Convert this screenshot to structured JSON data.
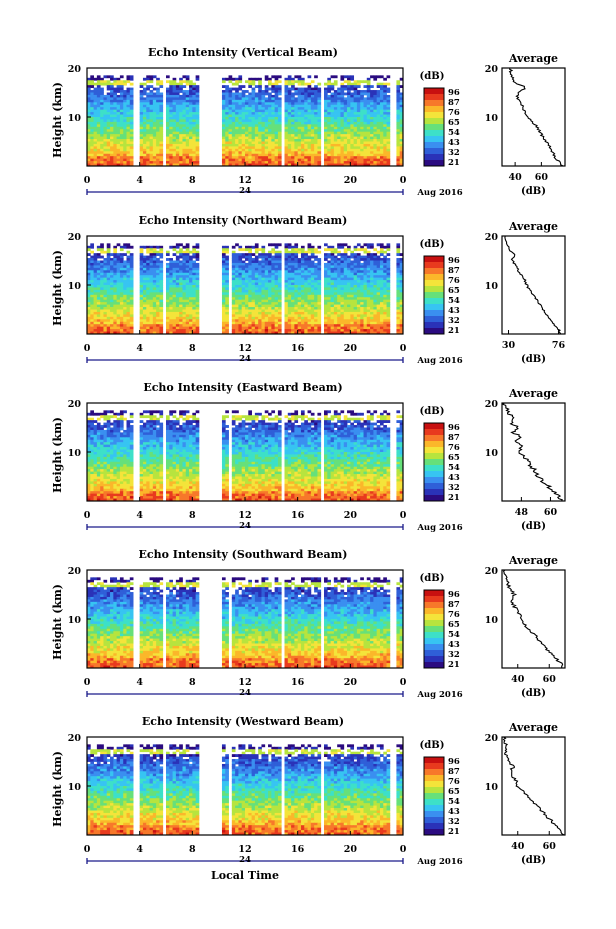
{
  "figure": {
    "xlabel": "Local Time",
    "date_label": "Aug 2016",
    "day_label": "24",
    "avg_title": "Average",
    "avg_unit": "(dB)",
    "cbar_unit": "(dB)",
    "ylabel": "Height (km)"
  },
  "colorbar": {
    "ticks": [
      "96",
      "87",
      "76",
      "65",
      "54",
      "43",
      "32",
      "21"
    ],
    "colors": [
      "#2b0b80",
      "#2a32b8",
      "#2f5fd8",
      "#3a8ff0",
      "#37c4f2",
      "#3de0c8",
      "#66e07a",
      "#b7e43e",
      "#f4e43a",
      "#fbb72a",
      "#f7782a",
      "#e83a1e",
      "#c81010"
    ]
  },
  "chart_data": [
    {
      "type": "heatmap",
      "title": "Echo Intensity (Vertical Beam)",
      "ylabel": "Height (km)",
      "xticks": [
        "0",
        "4",
        "8",
        "12",
        "16",
        "20",
        "0"
      ],
      "yticks": [
        "20",
        "10"
      ],
      "xlim": [
        0,
        24
      ],
      "ylim": [
        0,
        20
      ],
      "colorbar_ticks": [
        "96",
        "87",
        "76",
        "65",
        "54",
        "43",
        "32",
        "21"
      ],
      "data_gaps_hours": [
        [
          3.6,
          4.0
        ],
        [
          5.8,
          6.0
        ],
        [
          8.6,
          10.3
        ],
        [
          10.9,
          11.1
        ],
        [
          14.8,
          15.1
        ],
        [
          17.8,
          18.1
        ],
        [
          23.0,
          23.4
        ]
      ],
      "average_profile": {
        "xlabel": "(dB)",
        "xticks": [
          "40",
          "60"
        ],
        "xlim": [
          30,
          78
        ],
        "yticks": [
          "20",
          "10"
        ],
        "height_km": [
          0,
          1,
          2,
          3,
          4,
          5,
          6,
          7,
          8,
          9,
          10,
          11,
          12,
          13,
          14,
          15,
          16,
          17,
          18,
          19,
          20
        ],
        "values_db": [
          76,
          73,
          70,
          68,
          66,
          64,
          61,
          59,
          57,
          53,
          50,
          47,
          46,
          44,
          42,
          42,
          48,
          40,
          38,
          37,
          36
        ]
      }
    },
    {
      "type": "heatmap",
      "title": "Echo Intensity (Northward Beam)",
      "ylabel": "Height (km)",
      "xticks": [
        "0",
        "4",
        "8",
        "12",
        "16",
        "20",
        "0"
      ],
      "yticks": [
        "20",
        "10"
      ],
      "xlim": [
        0,
        24
      ],
      "ylim": [
        0,
        20
      ],
      "colorbar_ticks": [
        "96",
        "87",
        "76",
        "65",
        "54",
        "43",
        "32",
        "21"
      ],
      "data_gaps_hours": [
        [
          3.6,
          3.9
        ],
        [
          5.8,
          6.0
        ],
        [
          8.6,
          10.3
        ],
        [
          10.8,
          11.1
        ],
        [
          14.8,
          15.1
        ],
        [
          17.8,
          18.1
        ],
        [
          23.0,
          23.4
        ]
      ],
      "average_profile": {
        "xlabel": "(dB)",
        "xticks": [
          "30",
          "76"
        ],
        "xlim": [
          24,
          82
        ],
        "yticks": [
          "20",
          "10"
        ],
        "height_km": [
          0,
          1,
          2,
          3,
          4,
          5,
          6,
          7,
          8,
          9,
          10,
          11,
          12,
          13,
          14,
          15,
          16,
          17,
          18,
          19,
          20
        ],
        "values_db": [
          78,
          76,
          72,
          69,
          65,
          62,
          59,
          56,
          53,
          49,
          47,
          45,
          42,
          39,
          37,
          33,
          36,
          31,
          29,
          28,
          27
        ]
      }
    },
    {
      "type": "heatmap",
      "title": "Echo Intensity (Eastward Beam)",
      "ylabel": "Height (km)",
      "xticks": [
        "0",
        "4",
        "8",
        "12",
        "16",
        "20",
        "0"
      ],
      "yticks": [
        "20",
        "10"
      ],
      "xlim": [
        0,
        24
      ],
      "ylim": [
        0,
        20
      ],
      "colorbar_ticks": [
        "96",
        "87",
        "76",
        "65",
        "54",
        "43",
        "32",
        "21"
      ],
      "data_gaps_hours": [
        [
          3.6,
          3.9
        ],
        [
          5.8,
          6.0
        ],
        [
          8.6,
          10.3
        ],
        [
          10.8,
          11.1
        ],
        [
          14.8,
          15.1
        ],
        [
          17.8,
          18.1
        ],
        [
          23.0,
          23.4
        ]
      ],
      "average_profile": {
        "xlabel": "(dB)",
        "xticks": [
          "48",
          "60"
        ],
        "xlim": [
          40,
          66
        ],
        "yticks": [
          "20",
          "10"
        ],
        "height_km": [
          0,
          1,
          2,
          3,
          4,
          5,
          6,
          7,
          8,
          9,
          10,
          11,
          12,
          13,
          14,
          15,
          16,
          17,
          18,
          19,
          20
        ],
        "values_db": [
          65,
          63,
          61,
          59,
          57,
          55,
          54,
          52,
          51,
          49,
          47,
          48,
          46,
          47,
          45,
          46,
          44,
          44,
          43,
          42,
          41
        ]
      }
    },
    {
      "type": "heatmap",
      "title": "Echo Intensity (Southward Beam)",
      "ylabel": "Height (km)",
      "xticks": [
        "0",
        "4",
        "8",
        "12",
        "16",
        "20",
        "0"
      ],
      "yticks": [
        "20",
        "10"
      ],
      "xlim": [
        0,
        24
      ],
      "ylim": [
        0,
        20
      ],
      "colorbar_ticks": [
        "96",
        "87",
        "76",
        "65",
        "54",
        "43",
        "32",
        "21"
      ],
      "data_gaps_hours": [
        [
          3.6,
          3.9
        ],
        [
          5.8,
          6.0
        ],
        [
          8.6,
          10.3
        ],
        [
          10.8,
          11.1
        ],
        [
          14.8,
          15.1
        ],
        [
          17.8,
          18.1
        ],
        [
          23.0,
          23.4
        ]
      ],
      "average_profile": {
        "xlabel": "(dB)",
        "xticks": [
          "40",
          "60"
        ],
        "xlim": [
          30,
          70
        ],
        "yticks": [
          "20",
          "10"
        ],
        "height_km": [
          0,
          1,
          2,
          3,
          4,
          5,
          6,
          7,
          8,
          9,
          10,
          11,
          12,
          13,
          14,
          15,
          16,
          17,
          18,
          19,
          20
        ],
        "values_db": [
          69,
          67,
          64,
          61,
          58,
          55,
          53,
          50,
          47,
          44,
          42,
          41,
          39,
          37,
          36,
          38,
          35,
          34,
          33,
          32,
          32
        ]
      }
    },
    {
      "type": "heatmap",
      "title": "Echo Intensity (Westward Beam)",
      "ylabel": "Height (km)",
      "xticks": [
        "0",
        "4",
        "8",
        "12",
        "16",
        "20",
        "0"
      ],
      "yticks": [
        "20",
        "10"
      ],
      "xlim": [
        0,
        24
      ],
      "ylim": [
        0,
        20
      ],
      "colorbar_ticks": [
        "96",
        "87",
        "76",
        "65",
        "54",
        "43",
        "32",
        "21"
      ],
      "data_gaps_hours": [
        [
          3.6,
          3.9
        ],
        [
          5.8,
          6.0
        ],
        [
          8.6,
          10.3
        ],
        [
          10.8,
          11.1
        ],
        [
          14.8,
          15.1
        ],
        [
          17.8,
          18.1
        ],
        [
          23.0,
          23.4
        ]
      ],
      "average_profile": {
        "xlabel": "(dB)",
        "xticks": [
          "40",
          "60"
        ],
        "xlim": [
          30,
          70
        ],
        "yticks": [
          "20",
          "10"
        ],
        "height_km": [
          0,
          1,
          2,
          3,
          4,
          5,
          6,
          7,
          8,
          9,
          10,
          11,
          12,
          13,
          14,
          15,
          16,
          17,
          18,
          19,
          20
        ],
        "values_db": [
          69,
          67,
          64,
          61,
          58,
          55,
          52,
          49,
          46,
          43,
          40,
          39,
          37,
          36,
          37,
          34,
          33,
          32,
          33,
          32,
          31
        ]
      }
    }
  ]
}
